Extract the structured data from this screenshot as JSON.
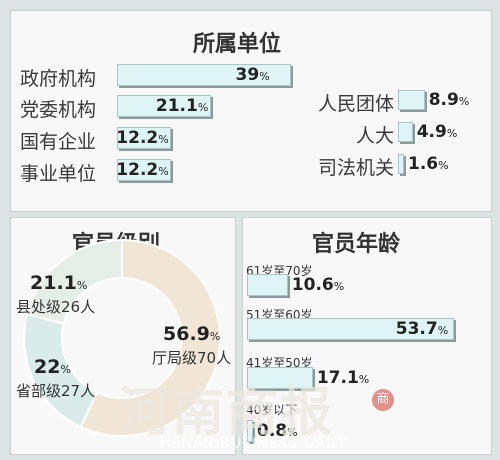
{
  "chart_data": [
    {
      "type": "bar",
      "title": "所属单位",
      "unit": "%",
      "categories": [
        "政府机构",
        "党委机构",
        "国有企业",
        "事业单位",
        "人民团体",
        "人大",
        "司法机关"
      ],
      "values": [
        39,
        21.1,
        12.2,
        12.2,
        8.9,
        4.9,
        1.6
      ],
      "value_labels": [
        "39",
        "21.1",
        "12.2",
        "12.2",
        "8.9",
        "4.9",
        "1.6"
      ]
    },
    {
      "type": "pie",
      "title": "官员级别",
      "unit": "%",
      "categories": [
        "厅局级70人",
        "省部级27人",
        "县处级26人"
      ],
      "values": [
        56.9,
        22,
        21.1
      ],
      "value_labels": [
        "56.9",
        "22",
        "21.1"
      ],
      "colors": [
        "#f1e5d6",
        "#d9ece9",
        "#e4eee7"
      ]
    },
    {
      "type": "bar",
      "title": "官员年龄",
      "unit": "%",
      "categories": [
        "61岁至70岁",
        "51岁至60岁",
        "41岁至50岁",
        "40岁以下"
      ],
      "values": [
        10.6,
        53.7,
        17.1,
        0.8
      ],
      "value_labels": [
        "10.6",
        "53.7",
        "17.1",
        "0.8"
      ]
    }
  ],
  "watermark": {
    "cn": "河南商报",
    "en": "HENAN BUSINESS DAILY",
    "seal": "商"
  }
}
